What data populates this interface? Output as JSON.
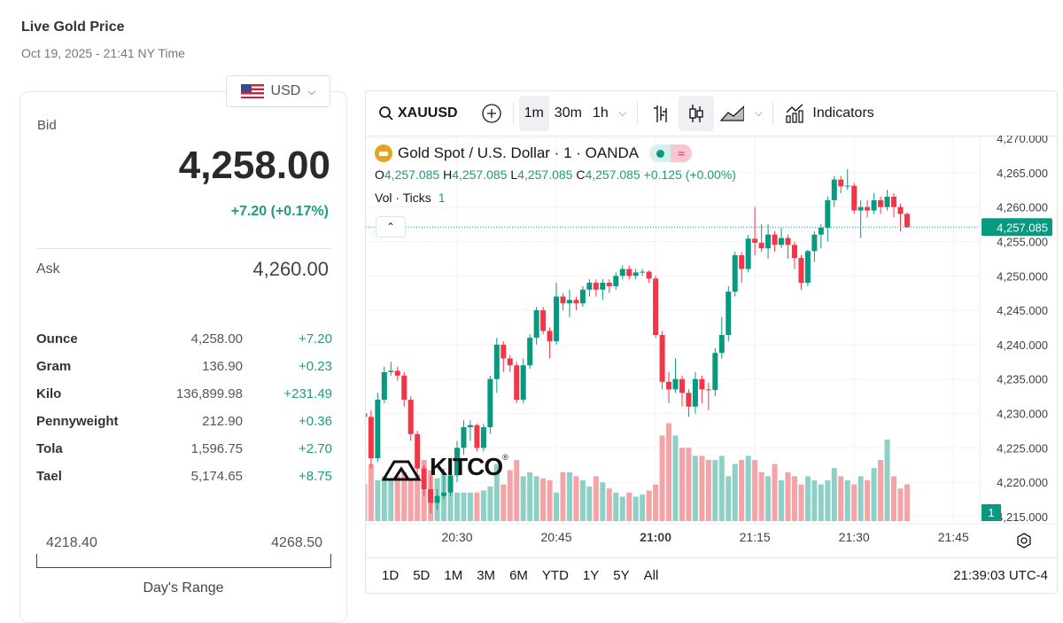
{
  "header": {
    "title": "Live Gold Price",
    "date": "Oct 19, 2025 - 21:41 NY Time"
  },
  "currency": {
    "selected": "USD",
    "flag_icon": "us-flag-icon"
  },
  "quote": {
    "bid_label": "Bid",
    "bid": "4,258.00",
    "change": "+7.20 (+0.17%)",
    "ask_label": "Ask",
    "ask": "4,260.00"
  },
  "units": [
    {
      "name": "Ounce",
      "price": "4,258.00",
      "change": "+7.20"
    },
    {
      "name": "Gram",
      "price": "136.90",
      "change": "+0.23"
    },
    {
      "name": "Kilo",
      "price": "136,899.98",
      "change": "+231.49"
    },
    {
      "name": "Pennyweight",
      "price": "212.90",
      "change": "+0.36"
    },
    {
      "name": "Tola",
      "price": "1,596.75",
      "change": "+2.70"
    },
    {
      "name": "Tael",
      "price": "5,174.65",
      "change": "+8.75"
    }
  ],
  "range": {
    "low": "4218.40",
    "high": "4268.50",
    "label": "Day's Range"
  },
  "colors": {
    "up": "#089981",
    "down": "#f23645",
    "up_vol": "#8fd0c6",
    "down_vol": "#f4a3a6",
    "positive_text": "#1e9b80"
  },
  "toolbar": {
    "symbol": "XAUUSD",
    "intervals": [
      "1m",
      "30m",
      "1h"
    ],
    "active_interval": "1m",
    "indicators": "Indicators"
  },
  "legend": {
    "title": "Gold Spot / U.S. Dollar · 1 · OANDA",
    "o": "4,257.085",
    "h": "4,257.085",
    "l": "4,257.085",
    "c": "4,257.085",
    "chg": "+0.125 (+0.00%)",
    "vol_label": "Vol · Ticks",
    "vol_value": "1"
  },
  "watermark": "KITCO",
  "ranges": [
    "1D",
    "5D",
    "1M",
    "3M",
    "6M",
    "YTD",
    "1Y",
    "5Y",
    "All"
  ],
  "clock": "21:39:03 UTC-4",
  "chart_data": {
    "type": "candlestick",
    "x_ticks": [
      "20:30",
      "20:45",
      "21:00",
      "21:15",
      "21:30",
      "21:45"
    ],
    "y_ticks": [
      "4,270.000",
      "4,265.000",
      "4,260.000",
      "4,255.000",
      "4,250.000",
      "4,245.000",
      "4,240.000",
      "4,235.000",
      "4,230.000",
      "4,225.000",
      "4,220.000",
      "4,215.000"
    ],
    "ylim": [
      4215,
      4270
    ],
    "last_price": "4,257.085",
    "last_volume": "1",
    "grid": true,
    "candles_columns": [
      "time",
      "open",
      "high",
      "low",
      "close",
      "volume"
    ],
    "candles": [
      [
        "20:16",
        4230,
        4231.5,
        4228.5,
        4229.5,
        18
      ],
      [
        "20:17",
        4229.5,
        4230.5,
        4222,
        4223.5,
        28
      ],
      [
        "20:18",
        4223.5,
        4233,
        4223,
        4232,
        20
      ],
      [
        "20:19",
        4232,
        4236.8,
        4231.5,
        4236,
        22
      ],
      [
        "20:20",
        4236,
        4237.5,
        4235.5,
        4236.2,
        21
      ],
      [
        "20:21",
        4236.2,
        4236.8,
        4234.8,
        4235.5,
        22
      ],
      [
        "20:22",
        4235.5,
        4236,
        4231,
        4232,
        24
      ],
      [
        "20:23",
        4232,
        4232.5,
        4226,
        4227,
        20
      ],
      [
        "20:24",
        4227,
        4227.5,
        4221,
        4222,
        23
      ],
      [
        "20:25",
        4222,
        4222.5,
        4218,
        4219,
        30
      ],
      [
        "20:26",
        4219,
        4221,
        4215.5,
        4217,
        25
      ],
      [
        "20:27",
        4217,
        4219,
        4216,
        4218,
        21
      ],
      [
        "20:28",
        4218,
        4222,
        4217.5,
        4218.5,
        24
      ],
      [
        "20:29",
        4218.5,
        4222,
        4218,
        4221,
        14
      ],
      [
        "20:30",
        4221,
        4226,
        4220,
        4225,
        14
      ],
      [
        "20:31",
        4225,
        4229,
        4224,
        4228,
        14
      ],
      [
        "20:32",
        4228,
        4229,
        4226,
        4228.3,
        14
      ],
      [
        "20:33",
        4228.3,
        4228.5,
        4224.5,
        4225,
        14
      ],
      [
        "20:34",
        4225,
        4228.5,
        4224.5,
        4228,
        15
      ],
      [
        "20:35",
        4228,
        4235.5,
        4227,
        4235,
        17
      ],
      [
        "20:36",
        4235,
        4241,
        4233,
        4240,
        28
      ],
      [
        "20:37",
        4240,
        4240.5,
        4236,
        4238,
        18
      ],
      [
        "20:38",
        4238,
        4238.5,
        4236,
        4237,
        25
      ],
      [
        "20:39",
        4237,
        4237.5,
        4231.5,
        4232,
        30
      ],
      [
        "20:40",
        4232,
        4238,
        4231.5,
        4237,
        22
      ],
      [
        "20:41",
        4237,
        4241.5,
        4236.5,
        4241,
        24
      ],
      [
        "20:42",
        4241,
        4245.5,
        4240,
        4245,
        22
      ],
      [
        "20:43",
        4245,
        4245.5,
        4241.5,
        4242,
        21
      ],
      [
        "20:44",
        4242,
        4242.5,
        4238,
        4240.5,
        20
      ],
      [
        "20:45",
        4240.5,
        4249,
        4240,
        4247,
        14
      ],
      [
        "20:46",
        4247,
        4247.5,
        4245,
        4246,
        24
      ],
      [
        "20:47",
        4246,
        4248,
        4244,
        4246.5,
        24
      ],
      [
        "20:48",
        4246.5,
        4247,
        4245,
        4246,
        22
      ],
      [
        "20:49",
        4246,
        4248.5,
        4245.5,
        4248,
        20
      ],
      [
        "20:50",
        4248,
        4249.5,
        4247,
        4249,
        17
      ],
      [
        "20:51",
        4249,
        4249.5,
        4247,
        4248,
        22
      ],
      [
        "20:52",
        4248,
        4249.5,
        4246.5,
        4249,
        19
      ],
      [
        "20:53",
        4249,
        4249.5,
        4247.5,
        4248.5,
        16
      ],
      [
        "20:54",
        4248.5,
        4250.5,
        4248,
        4250,
        14
      ],
      [
        "20:55",
        4250,
        4251.5,
        4249.5,
        4251,
        12
      ],
      [
        "20:56",
        4251,
        4251.5,
        4249.5,
        4250,
        14
      ],
      [
        "20:57",
        4250,
        4251,
        4249.5,
        4250.5,
        12
      ],
      [
        "20:58",
        4250.5,
        4251,
        4250,
        4250.6,
        13
      ],
      [
        "20:59",
        4250.6,
        4250.8,
        4249,
        4249.6,
        15
      ],
      [
        "21:00",
        4249.6,
        4250,
        4241,
        4241.4,
        18
      ],
      [
        "21:01",
        4241.4,
        4242,
        4233.5,
        4234.6,
        42
      ],
      [
        "21:02",
        4234.6,
        4236,
        4231.5,
        4233.5,
        48
      ],
      [
        "21:03",
        4233.5,
        4238,
        4233,
        4235,
        42
      ],
      [
        "21:04",
        4235,
        4235.5,
        4231,
        4233,
        36
      ],
      [
        "21:05",
        4233,
        4233.5,
        4229.5,
        4231,
        36
      ],
      [
        "21:06",
        4231,
        4236,
        4230,
        4235,
        32
      ],
      [
        "21:07",
        4235,
        4235.5,
        4231.5,
        4233.5,
        32
      ],
      [
        "21:08",
        4233.5,
        4234.5,
        4230.5,
        4233.4,
        30
      ],
      [
        "21:09",
        4233.4,
        4239.5,
        4232.5,
        4238.8,
        30
      ],
      [
        "21:10",
        4238.8,
        4244,
        4238,
        4241.4,
        32
      ],
      [
        "21:11",
        4241.4,
        4248.5,
        4240.5,
        4247.7,
        22
      ],
      [
        "21:12",
        4247.7,
        4253.5,
        4247,
        4253,
        28
      ],
      [
        "21:13",
        4253,
        4253.5,
        4249,
        4251,
        30
      ],
      [
        "21:14",
        4251,
        4256,
        4250.5,
        4255.4,
        32
      ],
      [
        "21:15",
        4255.4,
        4260,
        4253,
        4254.8,
        30
      ],
      [
        "21:16",
        4254.8,
        4257.5,
        4253.5,
        4254,
        24
      ],
      [
        "21:17",
        4254,
        4257.5,
        4252.5,
        4256,
        22
      ],
      [
        "21:18",
        4256,
        4256.5,
        4253.5,
        4254.5,
        28
      ],
      [
        "21:19",
        4254.5,
        4257,
        4254,
        4255.5,
        20
      ],
      [
        "21:20",
        4255.5,
        4256,
        4252.5,
        4254.5,
        24
      ],
      [
        "21:21",
        4254.5,
        4255,
        4251,
        4252.6,
        22
      ],
      [
        "21:22",
        4252.6,
        4253,
        4248,
        4249,
        18
      ],
      [
        "21:23",
        4249,
        4253.8,
        4248.5,
        4253.6,
        22
      ],
      [
        "21:24",
        4253.6,
        4256.5,
        4252,
        4256,
        20
      ],
      [
        "21:25",
        4256,
        4257.5,
        4254,
        4257,
        18
      ],
      [
        "21:26",
        4257,
        4261.5,
        4255,
        4261,
        20
      ],
      [
        "21:27",
        4261,
        4264.5,
        4260,
        4264,
        26
      ],
      [
        "21:28",
        4264,
        4264.5,
        4262,
        4263,
        22
      ],
      [
        "21:29",
        4263,
        4265.5,
        4262.5,
        4263.1,
        20
      ],
      [
        "21:30",
        4263.1,
        4263.5,
        4259,
        4259.5,
        18
      ],
      [
        "21:31",
        4259.5,
        4261,
        4255.5,
        4260,
        22
      ],
      [
        "21:32",
        4260,
        4261,
        4258.5,
        4259.5,
        20
      ],
      [
        "21:33",
        4259.5,
        4262,
        4259,
        4261,
        26
      ],
      [
        "21:34",
        4261,
        4261.5,
        4259,
        4260,
        30
      ],
      [
        "21:35",
        4260,
        4262.5,
        4259.5,
        4261.5,
        40
      ],
      [
        "21:36",
        4261.5,
        4262,
        4258.5,
        4260,
        22
      ],
      [
        "21:37",
        4260,
        4260.5,
        4256.5,
        4259,
        16
      ],
      [
        "21:38",
        4259,
        4259.2,
        4257,
        4257.085,
        18
      ]
    ]
  }
}
